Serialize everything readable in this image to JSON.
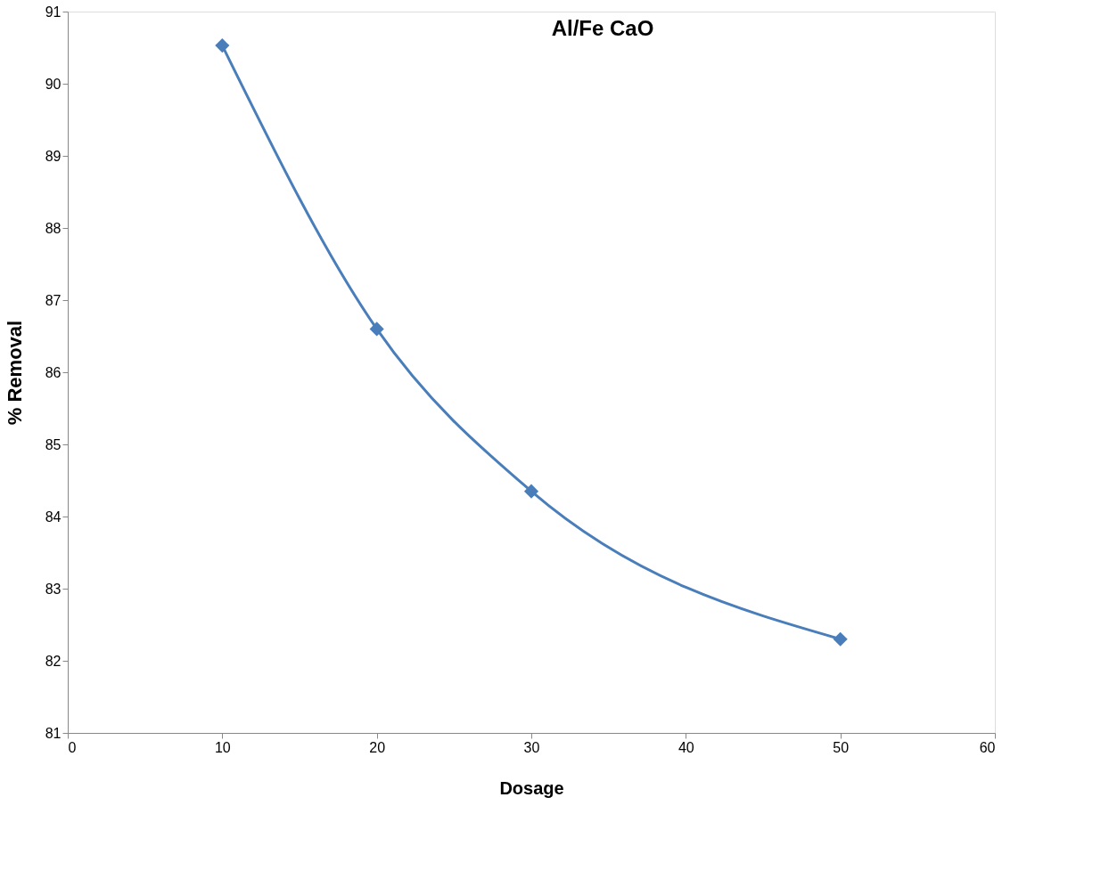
{
  "chart_data": {
    "type": "line",
    "title": "Al/Fe CaO",
    "xlabel": "Dosage",
    "ylabel": "% Removal",
    "x": [
      10,
      20,
      30,
      50
    ],
    "series": [
      {
        "color": "#4a7ebb",
        "values": [
          90.53,
          86.6,
          84.35,
          82.3
        ]
      }
    ],
    "xlim": [
      0,
      60
    ],
    "xticks": [
      0,
      10,
      20,
      30,
      40,
      50,
      60
    ],
    "ylim": [
      81,
      91
    ],
    "yticks": [
      81,
      82,
      83,
      84,
      85,
      86,
      87,
      88,
      89,
      90,
      91
    ],
    "grid": false,
    "marker": "diamond",
    "line_style": "solid"
  }
}
